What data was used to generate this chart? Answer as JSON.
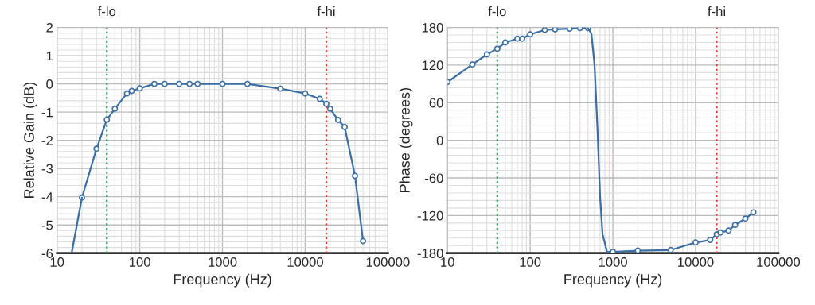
{
  "chart_data": [
    {
      "type": "line",
      "xlabel": "Frequency (Hz)",
      "ylabel": "Relative Gain (dB)",
      "log": "x",
      "grid": true,
      "marker": "circle",
      "line_style": "solid",
      "xlim": [
        10,
        100000
      ],
      "xticks": [
        10,
        100,
        1000,
        10000,
        100000
      ],
      "ylim": [
        -6,
        2
      ],
      "yticks": [
        -6,
        -5,
        -4,
        -3,
        -2,
        -1,
        0,
        1,
        2
      ],
      "series": [
        {
          "color": "#3a6ea5",
          "x": [
            20,
            30,
            40,
            50,
            70,
            80,
            100,
            150,
            200,
            300,
            400,
            500,
            1000,
            2000,
            5000,
            10000,
            15000,
            18000,
            20000,
            25000,
            30000,
            40000,
            50000
          ],
          "values": [
            -4.03,
            -2.3,
            -1.27,
            -0.88,
            -0.34,
            -0.25,
            -0.16,
            0,
            0,
            0,
            0,
            0,
            0,
            0,
            -0.17,
            -0.34,
            -0.53,
            -0.71,
            -0.88,
            -1.28,
            -1.53,
            -3.26,
            -5.57
          ]
        },
        {
          "color": "#3a6ea5",
          "marker": "none",
          "x": [
            15,
            20
          ],
          "values": [
            -6,
            -4.03
          ]
        }
      ],
      "ref_lines": [
        {
          "axis": "x",
          "value": 40,
          "label": "f-lo",
          "color": "#2e9e5b",
          "line_style": "dotted"
        },
        {
          "axis": "x",
          "value": 18000,
          "label": "f-hi",
          "color": "#e8392f",
          "line_style": "dotted"
        }
      ]
    },
    {
      "type": "line",
      "xlabel": "Frequency (Hz)",
      "ylabel": "Phase (degrees)",
      "log": "x",
      "grid": true,
      "marker": "circle",
      "line_style": "solid",
      "xlim": [
        10,
        100000
      ],
      "xticks": [
        10,
        100,
        1000,
        10000,
        100000
      ],
      "ylim": [
        -180,
        180
      ],
      "yticks": [
        -180,
        -120,
        -60,
        0,
        60,
        120,
        180
      ],
      "series": [
        {
          "color": "#3a6ea5",
          "x": [
            10,
            20,
            30,
            40,
            50,
            70,
            80,
            100,
            150,
            200,
            300,
            400,
            500
          ],
          "values": [
            93,
            121,
            137,
            146,
            156,
            162,
            162,
            169,
            176,
            177,
            178,
            179,
            179
          ]
        },
        {
          "color": "#3a6ea5",
          "marker": "none",
          "x": [
            500,
            550,
            600,
            650,
            700,
            750,
            850,
            1000
          ],
          "values": [
            179,
            170,
            120,
            20,
            -90,
            -150,
            -178,
            -178
          ]
        },
        {
          "color": "#3a6ea5",
          "x": [
            1000,
            2000,
            5000,
            10000,
            15000,
            18000,
            20000,
            25000,
            30000,
            40000,
            50000
          ],
          "values": [
            -178,
            -176,
            -175,
            -163,
            -159,
            -150,
            -147,
            -144,
            -135,
            -125,
            -115
          ]
        }
      ],
      "ref_lines": [
        {
          "axis": "x",
          "value": 40,
          "label": "f-lo",
          "color": "#2e9e5b",
          "line_style": "dotted"
        },
        {
          "axis": "x",
          "value": 18000,
          "label": "f-hi",
          "color": "#e8392f",
          "line_style": "dotted"
        }
      ]
    }
  ]
}
